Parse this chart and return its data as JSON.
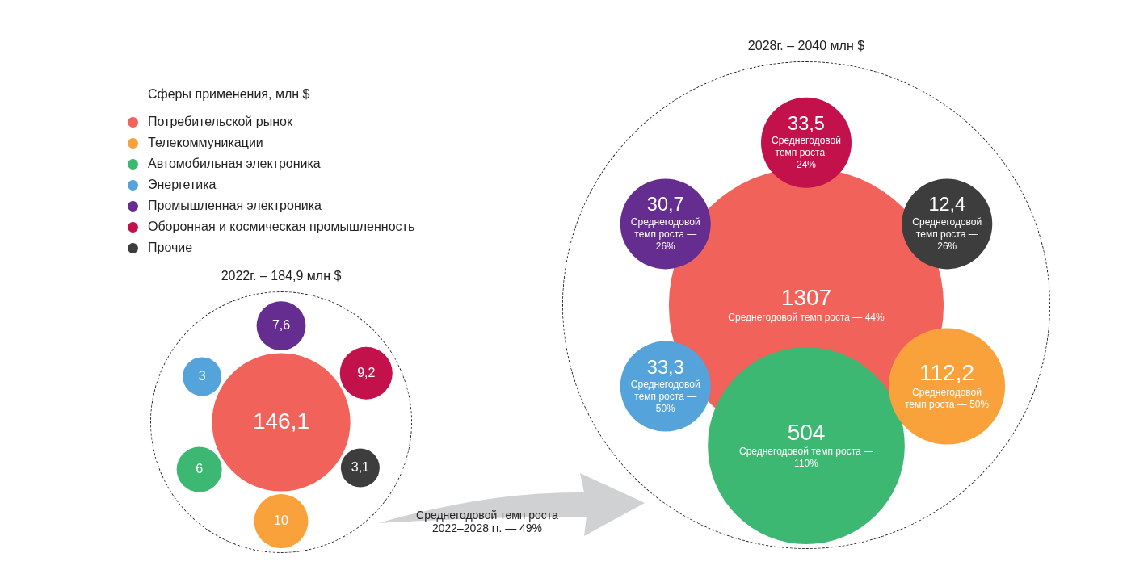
{
  "chart_data": {
    "type": "other",
    "legend": "top left",
    "legend_title": "Сферы применения, млн $",
    "categories": [
      "2022г. – 184,9 млн $",
      "2028г. – 2040 млн $"
    ],
    "series": [
      {
        "name": "Потребительской рынок",
        "color": "#f0625a",
        "values": [
          146.1,
          1307
        ],
        "value_labels": [
          "146,1",
          "1307"
        ]
      },
      {
        "name": "Телекоммуникации",
        "color": "#f9a13a",
        "values": [
          10,
          112.2
        ],
        "value_labels": [
          "10",
          "112,2"
        ]
      },
      {
        "name": "Автомобильная электроника",
        "color": "#3cb873",
        "values": [
          6,
          504
        ],
        "value_labels": [
          "6",
          "504"
        ]
      },
      {
        "name": "Энергетика",
        "color": "#55a3db",
        "values": [
          3,
          33.3
        ],
        "value_labels": [
          "3",
          "33,3"
        ]
      },
      {
        "name": "Промышленная электроника",
        "color": "#652d90",
        "values": [
          7.6,
          30.7
        ],
        "value_labels": [
          "7,6",
          "30,7"
        ]
      },
      {
        "name": "Оборонная и космическая промышленность",
        "color": "#c2114b",
        "values": [
          9.2,
          33.5
        ],
        "value_labels": [
          "9,2",
          "33,5"
        ]
      },
      {
        "name": "Прочие",
        "color": "#3d3d3d",
        "values": [
          3.1,
          12.4
        ],
        "value_labels": [
          "3,1",
          "12,4"
        ]
      }
    ],
    "annotations": [
      "Среднегодовой темп роста 2022–2028 гг. — 49%",
      {
        "text": "Среднегодовой темп роста — 44%",
        "x": "2028г. – 2040 млн $"
      },
      {
        "text": "Среднегодовой темп роста — 50%",
        "x": "2028г. – 2040 млн $"
      },
      {
        "text": "Среднегодовой темп роста — 110%",
        "x": "2028г. – 2040 млн $"
      },
      {
        "text": "Среднегодовой темп роста — 50%",
        "x": "2028г. – 2040 млн $"
      },
      {
        "text": "Среднегодовой темп роста — 26%",
        "x": "2028г. – 2040 млн $"
      },
      {
        "text": "Среднегодовой темп роста — 24%",
        "x": "2028г. – 2040 млн $"
      },
      {
        "text": "Среднегодовой темп роста — 26%",
        "x": "2028г. – 2040 млн $"
      }
    ]
  }
}
